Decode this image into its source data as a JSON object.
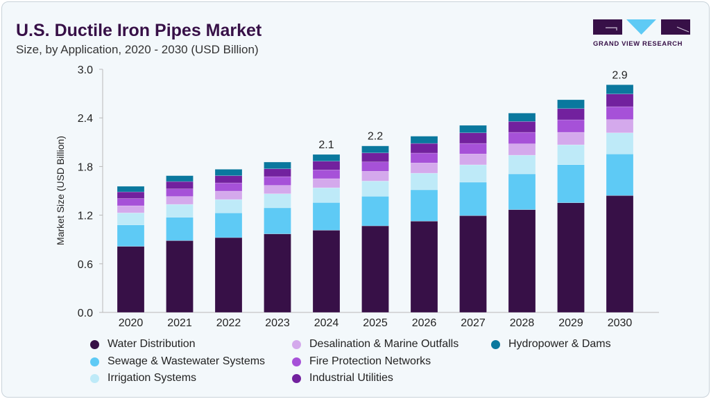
{
  "header": {
    "title": "U.S. Ductile Iron Pipes Market",
    "subtitle": "Size, by Application, 2020 - 2030 (USD Billion)"
  },
  "logo": {
    "text": "GRAND VIEW RESEARCH",
    "colors": [
      "#371047",
      "#5ecaf5"
    ]
  },
  "chart_data": {
    "type": "bar",
    "stacked": true,
    "title": "U.S. Ductile Iron Pipes Market",
    "subtitle": "Size, by Application, 2020 - 2030 (USD Billion)",
    "xlabel": "",
    "ylabel": "Market Size (USD Billion)",
    "ylim": [
      0,
      3.0
    ],
    "yticks": [
      "0.0",
      "0.6",
      "1.2",
      "1.8",
      "2.4",
      "3.0"
    ],
    "ytick_values": [
      0,
      0.6,
      1.2,
      1.8,
      2.4,
      3.0
    ],
    "grid": false,
    "legend_position": "bottom",
    "categories": [
      "2020",
      "2021",
      "2022",
      "2023",
      "2024",
      "2025",
      "2026",
      "2027",
      "2028",
      "2029",
      "2030"
    ],
    "data_labels": {
      "2024": "2.1",
      "2025": "2.2",
      "2030": "2.9"
    },
    "series": [
      {
        "name": "Water Distribution",
        "color": "#371047",
        "values": [
          0.815,
          0.886,
          0.923,
          0.969,
          1.014,
          1.068,
          1.126,
          1.194,
          1.268,
          1.353,
          1.442
        ]
      },
      {
        "name": "Sewage & Wastewater Systems",
        "color": "#5ecaf5",
        "values": [
          0.265,
          0.288,
          0.305,
          0.322,
          0.342,
          0.365,
          0.387,
          0.413,
          0.441,
          0.47,
          0.513
        ]
      },
      {
        "name": "Irrigation Systems",
        "color": "#beeaf8",
        "values": [
          0.148,
          0.159,
          0.165,
          0.173,
          0.182,
          0.188,
          0.205,
          0.214,
          0.231,
          0.245,
          0.261
        ]
      },
      {
        "name": "Desalination & Marine Outfalls",
        "color": "#d4a9ec",
        "values": [
          0.088,
          0.097,
          0.103,
          0.103,
          0.112,
          0.12,
          0.126,
          0.134,
          0.14,
          0.154,
          0.163
        ]
      },
      {
        "name": "Fire Protection Networks",
        "color": "#a651d8",
        "values": [
          0.089,
          0.094,
          0.102,
          0.108,
          0.108,
          0.116,
          0.122,
          0.13,
          0.142,
          0.154,
          0.159
        ]
      },
      {
        "name": "Industrial Utilities",
        "color": "#72219e",
        "values": [
          0.082,
          0.091,
          0.089,
          0.097,
          0.108,
          0.111,
          0.119,
          0.131,
          0.134,
          0.139,
          0.157
        ]
      },
      {
        "name": "Hydropower & Dams",
        "color": "#0a789e",
        "values": [
          0.069,
          0.072,
          0.079,
          0.083,
          0.083,
          0.086,
          0.089,
          0.092,
          0.103,
          0.109,
          0.114
        ]
      }
    ]
  }
}
